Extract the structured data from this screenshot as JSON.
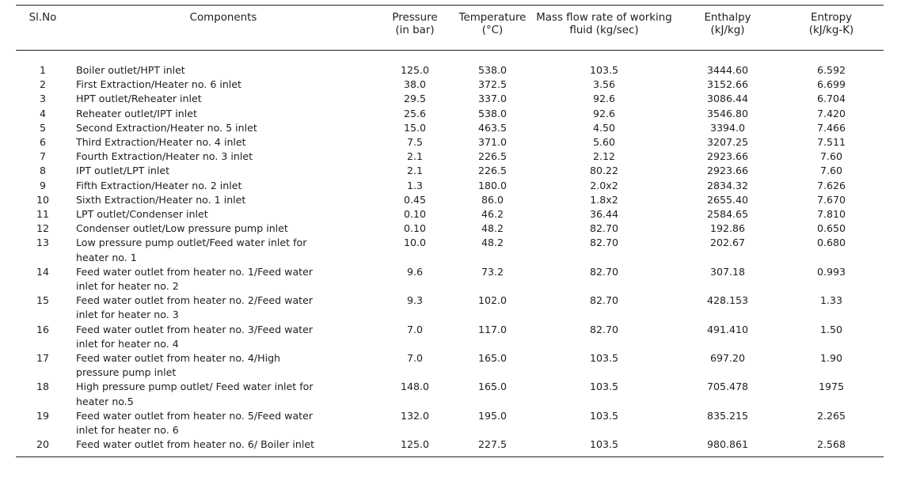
{
  "headers": {
    "slno": "Sl.No",
    "components": "Components",
    "pressure": [
      "Pressure",
      "(in bar)"
    ],
    "temperature": [
      "Temperature",
      "(°C)"
    ],
    "massflow": [
      "Mass flow rate of working",
      "fluid (kg/sec)"
    ],
    "enthalpy": [
      "Enthalpy",
      "(kJ/kg)"
    ],
    "entropy": [
      "Entropy",
      "(kJ/kg-K)"
    ]
  },
  "rows": [
    {
      "no": "1",
      "component": "Boiler outlet/HPT inlet",
      "pressure": "125.0",
      "temperature": "538.0",
      "massflow": "103.5",
      "enthalpy": "3444.60",
      "entropy": "6.592"
    },
    {
      "no": "2",
      "component": "First Extraction/Heater no. 6 inlet",
      "pressure": "38.0",
      "temperature": "372.5",
      "massflow": "3.56",
      "enthalpy": "3152.66",
      "entropy": "6.699"
    },
    {
      "no": "3",
      "component": "HPT outlet/Reheater inlet",
      "pressure": "29.5",
      "temperature": "337.0",
      "massflow": "92.6",
      "enthalpy": "3086.44",
      "entropy": "6.704"
    },
    {
      "no": "4",
      "component": "Reheater outlet/IPT inlet",
      "pressure": "25.6",
      "temperature": "538.0",
      "massflow": "92.6",
      "enthalpy": "3546.80",
      "entropy": "7.420"
    },
    {
      "no": "5",
      "component": "Second Extraction/Heater no. 5 inlet",
      "pressure": "15.0",
      "temperature": "463.5",
      "massflow": "4.50",
      "enthalpy": "3394.0",
      "entropy": "7.466"
    },
    {
      "no": "6",
      "component": "Third Extraction/Heater no. 4 inlet",
      "pressure": "7.5",
      "temperature": "371.0",
      "massflow": "5.60",
      "enthalpy": "3207.25",
      "entropy": "7.511"
    },
    {
      "no": "7",
      "component": "Fourth Extraction/Heater no. 3 inlet",
      "pressure": "2.1",
      "temperature": "226.5",
      "massflow": "2.12",
      "enthalpy": "2923.66",
      "entropy": "7.60"
    },
    {
      "no": "8",
      "component": "IPT outlet/LPT inlet",
      "pressure": "2.1",
      "temperature": "226.5",
      "massflow": "80.22",
      "enthalpy": "2923.66",
      "entropy": "7.60"
    },
    {
      "no": "9",
      "component": "Fifth Extraction/Heater no. 2 inlet",
      "pressure": "1.3",
      "temperature": "180.0",
      "massflow": "2.0x2",
      "enthalpy": "2834.32",
      "entropy": "7.626"
    },
    {
      "no": "10",
      "component": "Sixth Extraction/Heater no. 1 inlet",
      "pressure": "0.45",
      "temperature": "86.0",
      "massflow": "1.8x2",
      "enthalpy": "2655.40",
      "entropy": "7.670"
    },
    {
      "no": "11",
      "component": "LPT outlet/Condenser inlet",
      "pressure": "0.10",
      "temperature": "46.2",
      "massflow": "36.44",
      "enthalpy": "2584.65",
      "entropy": "7.810"
    },
    {
      "no": "12",
      "component": "Condenser outlet/Low pressure pump inlet",
      "pressure": "0.10",
      "temperature": "48.2",
      "massflow": "82.70",
      "enthalpy": "192.86",
      "entropy": "0.650"
    },
    {
      "no": "13",
      "component": "Low pressure pump outlet/Feed water inlet for heater no. 1",
      "pressure": "10.0",
      "temperature": "48.2",
      "massflow": "82.70",
      "enthalpy": "202.67",
      "entropy": "0.680"
    },
    {
      "no": "14",
      "component": "Feed water outlet from heater no. 1/Feed water inlet for heater no. 2",
      "pressure": "9.6",
      "temperature": "73.2",
      "massflow": "82.70",
      "enthalpy": "307.18",
      "entropy": "0.993"
    },
    {
      "no": "15",
      "component": "Feed water outlet from heater no. 2/Feed water inlet for heater no. 3",
      "pressure": "9.3",
      "temperature": "102.0",
      "massflow": "82.70",
      "enthalpy": "428.153",
      "entropy": "1.33"
    },
    {
      "no": "16",
      "component": "Feed water outlet from heater no. 3/Feed water inlet for heater no. 4",
      "pressure": "7.0",
      "temperature": "117.0",
      "massflow": "82.70",
      "enthalpy": "491.410",
      "entropy": "1.50"
    },
    {
      "no": "17",
      "component": "Feed water outlet from heater no. 4/High pressure pump inlet",
      "pressure": "7.0",
      "temperature": "165.0",
      "massflow": "103.5",
      "enthalpy": "697.20",
      "entropy": "1.90"
    },
    {
      "no": "18",
      "component": "High pressure pump outlet/ Feed water inlet for heater no.5",
      "pressure": "148.0",
      "temperature": "165.0",
      "massflow": "103.5",
      "enthalpy": "705.478",
      "entropy": "1975"
    },
    {
      "no": "19",
      "component": "Feed water outlet from heater no. 5/Feed water inlet for heater no. 6",
      "pressure": "132.0",
      "temperature": "195.0",
      "massflow": "103.5",
      "enthalpy": "835.215",
      "entropy": "2.265"
    },
    {
      "no": "20",
      "component": "Feed water outlet from heater no. 6/ Boiler inlet",
      "pressure": "125.0",
      "temperature": "227.5",
      "massflow": "103.5",
      "enthalpy": "980.861",
      "entropy": "2.568"
    }
  ]
}
